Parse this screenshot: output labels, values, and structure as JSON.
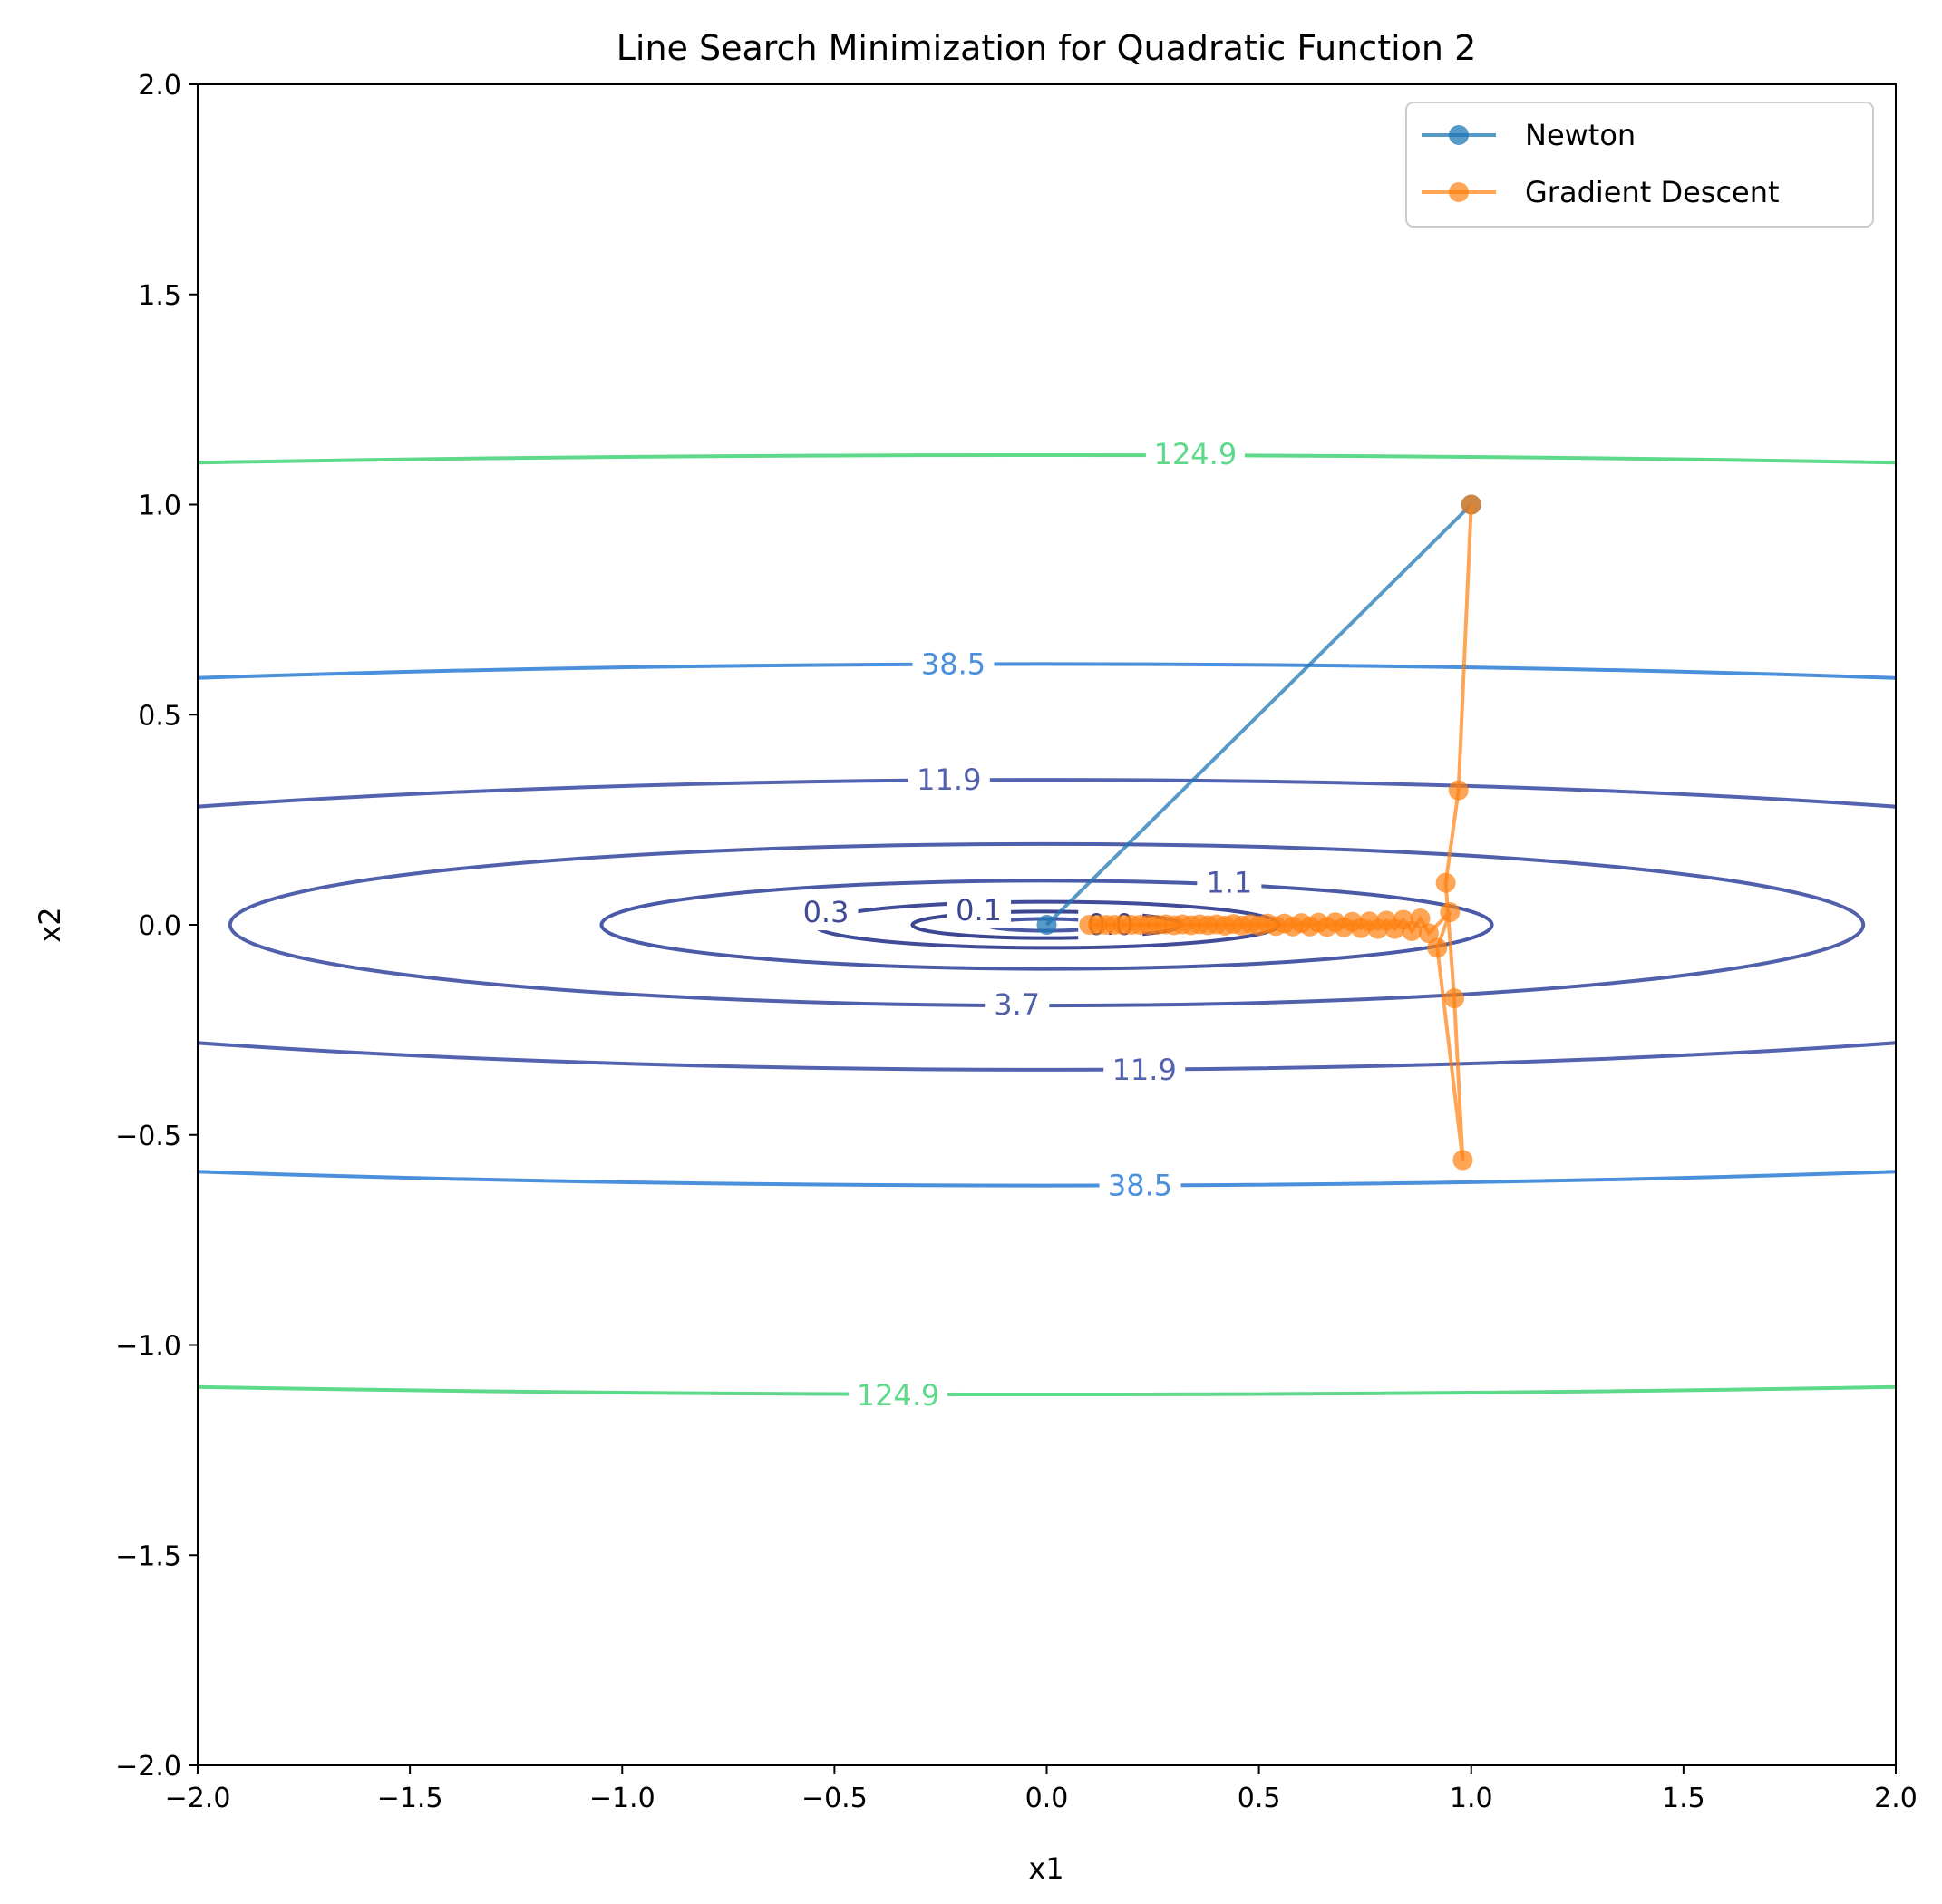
{
  "chart_data": {
    "type": "line",
    "title": "Line Search Minimization for Quadratic Function 2",
    "xlabel": "x1",
    "ylabel": "x2",
    "xlim": [
      -2.0,
      2.0
    ],
    "ylim": [
      -2.0,
      2.0
    ],
    "xticks": [
      "−2.0",
      "−1.5",
      "−1.0",
      "−0.5",
      "0.0",
      "0.5",
      "1.0",
      "1.5",
      "2.0"
    ],
    "yticks": [
      "−2.0",
      "−1.5",
      "−1.0",
      "−0.5",
      "0.0",
      "0.5",
      "1.0",
      "1.5",
      "2.0"
    ],
    "grid": false,
    "legend_position": "top-right",
    "contours": {
      "function": "x1^2 + 100*x2^2",
      "levels": [
        0.0,
        0.1,
        0.3,
        1.1,
        3.7,
        11.9,
        38.5,
        124.9
      ],
      "colors": {
        "0.0": "#3b3f86",
        "0.1": "#3d4690",
        "0.3": "#404c97",
        "1.1": "#4a5aa6",
        "3.7": "#5060ab",
        "11.9": "#5463b0",
        "38.5": "#4a90dc",
        "124.9": "#5ed98a"
      },
      "labels": [
        {
          "text": "124.9",
          "x": 0.35,
          "y": 1.12
        },
        {
          "text": "124.9",
          "x": -0.35,
          "y": -1.12
        },
        {
          "text": "38.5",
          "x": -0.22,
          "y": 0.62
        },
        {
          "text": "38.5",
          "x": 0.22,
          "y": -0.62
        },
        {
          "text": "11.9",
          "x": -0.23,
          "y": 0.345
        },
        {
          "text": "11.9",
          "x": 0.23,
          "y": -0.345
        },
        {
          "text": "3.7",
          "x": -0.07,
          "y": -0.19
        },
        {
          "text": "1.1",
          "x": 0.43,
          "y": 0.1
        },
        {
          "text": "0.3",
          "x": -0.52,
          "y": 0.03
        },
        {
          "text": "0.1",
          "x": -0.16,
          "y": 0.035
        },
        {
          "text": "0.0",
          "x": 0.15,
          "y": 0.0
        }
      ]
    },
    "series": [
      {
        "name": "Newton",
        "color": "#1f77b4",
        "x": [
          1.0,
          0.0
        ],
        "y": [
          1.0,
          0.0
        ]
      },
      {
        "name": "Gradient Descent",
        "color": "#ff7f0e",
        "x": [
          1.0,
          0.97,
          0.94,
          0.96,
          0.98,
          0.92,
          0.95,
          0.9,
          0.88,
          0.86,
          0.84,
          0.82,
          0.8,
          0.78,
          0.76,
          0.74,
          0.72,
          0.7,
          0.68,
          0.66,
          0.64,
          0.62,
          0.6,
          0.58,
          0.56,
          0.54,
          0.52,
          0.5,
          0.48,
          0.46,
          0.44,
          0.42,
          0.4,
          0.38,
          0.36,
          0.34,
          0.32,
          0.3,
          0.28,
          0.26,
          0.24,
          0.22,
          0.2,
          0.18,
          0.16,
          0.14,
          0.12,
          0.1
        ],
        "y": [
          1.0,
          0.32,
          0.1,
          -0.175,
          -0.56,
          -0.055,
          0.03,
          -0.02,
          0.015,
          -0.015,
          0.012,
          -0.01,
          0.01,
          -0.01,
          0.008,
          -0.008,
          0.007,
          -0.006,
          0.006,
          -0.005,
          0.005,
          -0.004,
          0.004,
          -0.004,
          0.003,
          -0.003,
          0.003,
          -0.002,
          0.002,
          -0.002,
          0.002,
          -0.002,
          0.001,
          -0.001,
          0.001,
          -0.001,
          0.001,
          -0.001,
          0.001,
          0.0,
          0.0,
          0.0,
          0.0,
          0.0,
          0.0,
          0.0,
          0.0,
          0.0
        ]
      }
    ]
  }
}
